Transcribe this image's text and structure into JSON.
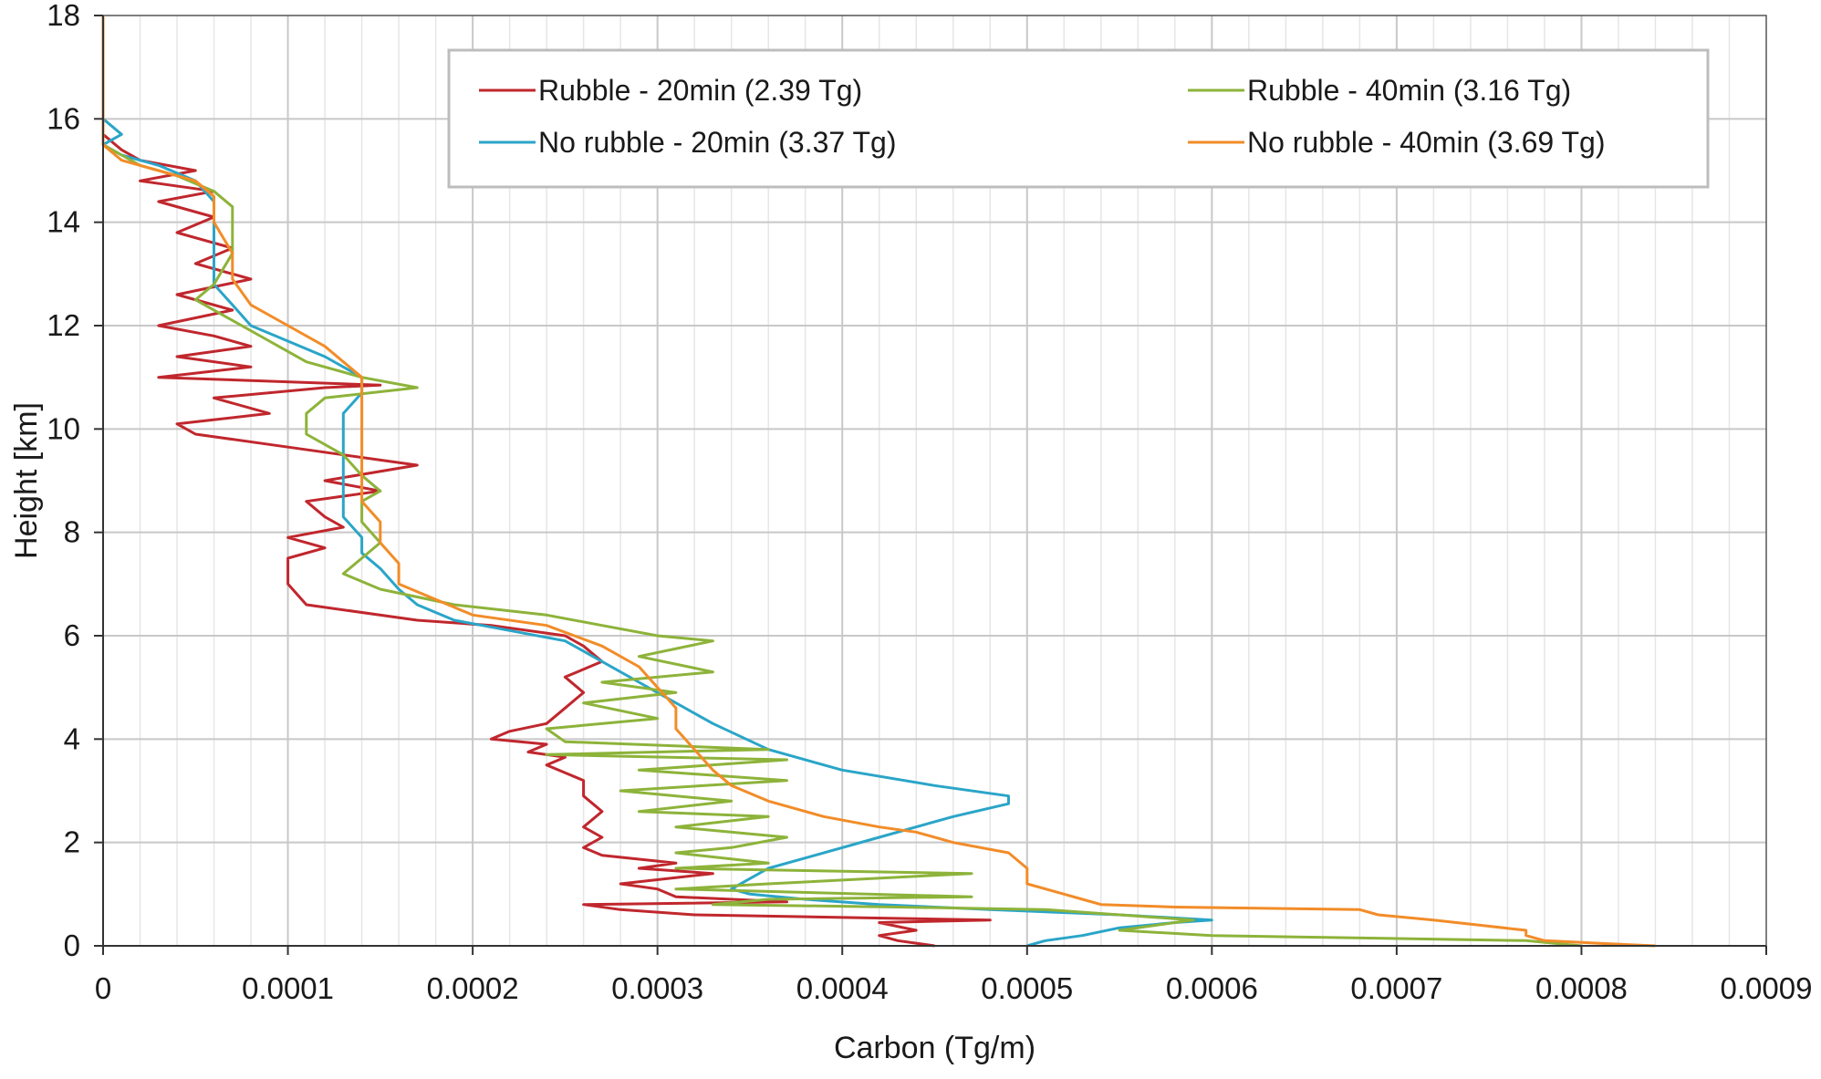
{
  "chart_data": {
    "type": "line",
    "title": "",
    "xlabel": "Carbon (Tg/m)",
    "ylabel": "Height [km]",
    "xlim": [
      0,
      0.0009
    ],
    "ylim": [
      0,
      18
    ],
    "x_ticks": [
      "0",
      "0.0001",
      "0.0002",
      "0.0003",
      "0.0004",
      "0.0005",
      "0.0006",
      "0.0007",
      "0.0008",
      "0.0009"
    ],
    "y_ticks": [
      "0",
      "2",
      "4",
      "6",
      "8",
      "10",
      "12",
      "14",
      "16",
      "18"
    ],
    "grid": true,
    "legend_position": "top-right",
    "series": [
      {
        "name": "Rubble - 20min (2.39 Tg)",
        "color": "#c0272d",
        "points": [
          [
            0.00045,
            0.0
          ],
          [
            0.00043,
            0.1
          ],
          [
            0.00042,
            0.2
          ],
          [
            0.00044,
            0.3
          ],
          [
            0.00042,
            0.45
          ],
          [
            0.00048,
            0.5
          ],
          [
            0.00032,
            0.6
          ],
          [
            0.00028,
            0.7
          ],
          [
            0.00026,
            0.8
          ],
          [
            0.00037,
            0.85
          ],
          [
            0.00031,
            0.95
          ],
          [
            0.0003,
            1.1
          ],
          [
            0.00028,
            1.2
          ],
          [
            0.00033,
            1.4
          ],
          [
            0.00029,
            1.5
          ],
          [
            0.00031,
            1.6
          ],
          [
            0.00027,
            1.75
          ],
          [
            0.00026,
            1.9
          ],
          [
            0.00027,
            2.1
          ],
          [
            0.00026,
            2.3
          ],
          [
            0.00027,
            2.6
          ],
          [
            0.00026,
            2.9
          ],
          [
            0.00026,
            3.2
          ],
          [
            0.00025,
            3.35
          ],
          [
            0.00024,
            3.5
          ],
          [
            0.00025,
            3.65
          ],
          [
            0.00023,
            3.75
          ],
          [
            0.00024,
            3.9
          ],
          [
            0.00021,
            4.0
          ],
          [
            0.00022,
            4.15
          ],
          [
            0.00024,
            4.3
          ],
          [
            0.00025,
            4.6
          ],
          [
            0.00026,
            4.9
          ],
          [
            0.00025,
            5.2
          ],
          [
            0.00027,
            5.5
          ],
          [
            0.00026,
            5.8
          ],
          [
            0.00025,
            6.0
          ],
          [
            0.00021,
            6.2
          ],
          [
            0.00017,
            6.3
          ],
          [
            0.00011,
            6.6
          ],
          [
            0.0001,
            7.0
          ],
          [
            0.0001,
            7.5
          ],
          [
            0.00012,
            7.7
          ],
          [
            0.0001,
            7.9
          ],
          [
            0.00013,
            8.1
          ],
          [
            0.00012,
            8.3
          ],
          [
            0.00011,
            8.6
          ],
          [
            0.00015,
            8.8
          ],
          [
            0.00012,
            9.0
          ],
          [
            0.00017,
            9.3
          ],
          [
            0.00013,
            9.5
          ],
          [
            9e-05,
            9.7
          ],
          [
            5e-05,
            9.9
          ],
          [
            4e-05,
            10.1
          ],
          [
            9e-05,
            10.3
          ],
          [
            6e-05,
            10.6
          ],
          [
            0.00012,
            10.8
          ],
          [
            0.00015,
            10.85
          ],
          [
            3e-05,
            11.0
          ],
          [
            8e-05,
            11.2
          ],
          [
            4e-05,
            11.4
          ],
          [
            8e-05,
            11.6
          ],
          [
            6e-05,
            11.8
          ],
          [
            3e-05,
            12.0
          ],
          [
            7e-05,
            12.3
          ],
          [
            4e-05,
            12.6
          ],
          [
            8e-05,
            12.9
          ],
          [
            5e-05,
            13.2
          ],
          [
            7e-05,
            13.5
          ],
          [
            4e-05,
            13.8
          ],
          [
            6e-05,
            14.1
          ],
          [
            3e-05,
            14.4
          ],
          [
            6e-05,
            14.6
          ],
          [
            2e-05,
            14.8
          ],
          [
            5e-05,
            15.0
          ],
          [
            2e-05,
            15.2
          ],
          [
            1e-05,
            15.4
          ],
          [
            0.0,
            15.7
          ],
          [
            0.0,
            16.0
          ],
          [
            0.0,
            16.5
          ],
          [
            0.0,
            17.0
          ],
          [
            0.0,
            17.5
          ],
          [
            0.0,
            18.0
          ]
        ]
      },
      {
        "name": "No rubble - 20min (3.37 Tg)",
        "color": "#2aa5c8",
        "points": [
          [
            0.0005,
            0.0
          ],
          [
            0.00051,
            0.1
          ],
          [
            0.00053,
            0.2
          ],
          [
            0.00055,
            0.35
          ],
          [
            0.00058,
            0.45
          ],
          [
            0.0006,
            0.5
          ],
          [
            0.00055,
            0.6
          ],
          [
            0.00048,
            0.7
          ],
          [
            0.00042,
            0.8
          ],
          [
            0.00038,
            0.9
          ],
          [
            0.00035,
            1.0
          ],
          [
            0.00034,
            1.1
          ],
          [
            0.00035,
            1.3
          ],
          [
            0.00036,
            1.5
          ],
          [
            0.00038,
            1.7
          ],
          [
            0.00042,
            2.1
          ],
          [
            0.00046,
            2.5
          ],
          [
            0.00049,
            2.75
          ],
          [
            0.00049,
            2.9
          ],
          [
            0.00045,
            3.1
          ],
          [
            0.0004,
            3.4
          ],
          [
            0.00036,
            3.8
          ],
          [
            0.00033,
            4.3
          ],
          [
            0.00031,
            4.7
          ],
          [
            0.00029,
            5.1
          ],
          [
            0.00027,
            5.5
          ],
          [
            0.00025,
            5.9
          ],
          [
            0.00022,
            6.1
          ],
          [
            0.00019,
            6.3
          ],
          [
            0.00017,
            6.6
          ],
          [
            0.00016,
            6.9
          ],
          [
            0.00015,
            7.3
          ],
          [
            0.00014,
            7.6
          ],
          [
            0.00014,
            7.9
          ],
          [
            0.00013,
            8.3
          ],
          [
            0.00013,
            8.7
          ],
          [
            0.00013,
            9.1
          ],
          [
            0.00013,
            9.5
          ],
          [
            0.00013,
            9.9
          ],
          [
            0.00013,
            10.3
          ],
          [
            0.00014,
            10.7
          ],
          [
            0.00014,
            11.0
          ],
          [
            0.00012,
            11.4
          ],
          [
            0.0001,
            11.7
          ],
          [
            8e-05,
            12.0
          ],
          [
            7e-05,
            12.4
          ],
          [
            6e-05,
            12.8
          ],
          [
            6e-05,
            13.3
          ],
          [
            6e-05,
            13.9
          ],
          [
            6e-05,
            14.4
          ],
          [
            5e-05,
            14.8
          ],
          [
            3e-05,
            15.1
          ],
          [
            1e-05,
            15.3
          ],
          [
            0.0,
            15.5
          ],
          [
            1e-05,
            15.7
          ],
          [
            0.0,
            16.0
          ],
          [
            0.0,
            16.5
          ],
          [
            0.0,
            17.0
          ],
          [
            0.0,
            17.5
          ],
          [
            0.0,
            18.0
          ]
        ]
      },
      {
        "name": "Rubble - 40min (3.16 Tg)",
        "color": "#8db33a",
        "points": [
          [
            0.0008,
            0.0
          ],
          [
            0.00077,
            0.1
          ],
          [
            0.0006,
            0.2
          ],
          [
            0.00055,
            0.3
          ],
          [
            0.00058,
            0.45
          ],
          [
            0.00059,
            0.5
          ],
          [
            0.00055,
            0.6
          ],
          [
            0.00051,
            0.7
          ],
          [
            0.00043,
            0.75
          ],
          [
            0.00033,
            0.8
          ],
          [
            0.00036,
            0.9
          ],
          [
            0.00047,
            0.95
          ],
          [
            0.00031,
            1.1
          ],
          [
            0.00036,
            1.2
          ],
          [
            0.00047,
            1.4
          ],
          [
            0.00031,
            1.5
          ],
          [
            0.00036,
            1.6
          ],
          [
            0.00031,
            1.8
          ],
          [
            0.00034,
            1.9
          ],
          [
            0.00037,
            2.1
          ],
          [
            0.00031,
            2.3
          ],
          [
            0.00036,
            2.5
          ],
          [
            0.00029,
            2.6
          ],
          [
            0.00034,
            2.8
          ],
          [
            0.00028,
            3.0
          ],
          [
            0.00037,
            3.2
          ],
          [
            0.00029,
            3.4
          ],
          [
            0.00037,
            3.6
          ],
          [
            0.00024,
            3.7
          ],
          [
            0.00036,
            3.8
          ],
          [
            0.00025,
            3.95
          ],
          [
            0.00024,
            4.2
          ],
          [
            0.0003,
            4.4
          ],
          [
            0.00026,
            4.7
          ],
          [
            0.00031,
            4.9
          ],
          [
            0.00027,
            5.1
          ],
          [
            0.00033,
            5.3
          ],
          [
            0.00029,
            5.6
          ],
          [
            0.00033,
            5.9
          ],
          [
            0.0003,
            6.0
          ],
          [
            0.00027,
            6.2
          ],
          [
            0.00024,
            6.4
          ],
          [
            0.00019,
            6.6
          ],
          [
            0.00015,
            6.9
          ],
          [
            0.00013,
            7.2
          ],
          [
            0.00014,
            7.5
          ],
          [
            0.00015,
            7.8
          ],
          [
            0.00014,
            8.2
          ],
          [
            0.00014,
            8.6
          ],
          [
            0.00015,
            8.8
          ],
          [
            0.00014,
            9.1
          ],
          [
            0.00013,
            9.5
          ],
          [
            0.00011,
            9.9
          ],
          [
            0.00011,
            10.3
          ],
          [
            0.00012,
            10.6
          ],
          [
            0.00017,
            10.8
          ],
          [
            0.00014,
            11.0
          ],
          [
            0.00011,
            11.3
          ],
          [
            9e-05,
            11.7
          ],
          [
            7e-05,
            12.1
          ],
          [
            5e-05,
            12.5
          ],
          [
            6e-05,
            12.8
          ],
          [
            7e-05,
            13.4
          ],
          [
            7e-05,
            14.0
          ],
          [
            7e-05,
            14.3
          ],
          [
            6e-05,
            14.6
          ],
          [
            4e-05,
            14.9
          ],
          [
            2e-05,
            15.1
          ],
          [
            1e-05,
            15.3
          ],
          [
            0.0,
            15.5
          ],
          [
            0.0,
            16.0
          ],
          [
            0.0,
            16.5
          ],
          [
            0.0,
            17.0
          ],
          [
            0.0,
            17.5
          ],
          [
            0.0,
            18.0
          ]
        ]
      },
      {
        "name": "No rubble - 40min (3.69 Tg)",
        "color": "#f28c28",
        "points": [
          [
            0.00084,
            0.0
          ],
          [
            0.00081,
            0.05
          ],
          [
            0.00078,
            0.1
          ],
          [
            0.00077,
            0.2
          ],
          [
            0.00077,
            0.3
          ],
          [
            0.00072,
            0.5
          ],
          [
            0.00069,
            0.6
          ],
          [
            0.00068,
            0.7
          ],
          [
            0.00058,
            0.75
          ],
          [
            0.00054,
            0.8
          ],
          [
            0.00053,
            0.9
          ],
          [
            0.00052,
            1.0
          ],
          [
            0.0005,
            1.2
          ],
          [
            0.0005,
            1.5
          ],
          [
            0.00049,
            1.8
          ],
          [
            0.00046,
            2.0
          ],
          [
            0.00044,
            2.2
          ],
          [
            0.00042,
            2.3
          ],
          [
            0.00039,
            2.5
          ],
          [
            0.00036,
            2.8
          ],
          [
            0.00034,
            3.1
          ],
          [
            0.00033,
            3.4
          ],
          [
            0.00032,
            3.8
          ],
          [
            0.00031,
            4.2
          ],
          [
            0.00031,
            4.6
          ],
          [
            0.0003,
            5.0
          ],
          [
            0.00029,
            5.4
          ],
          [
            0.00027,
            5.8
          ],
          [
            0.00024,
            6.2
          ],
          [
            0.0002,
            6.4
          ],
          [
            0.00018,
            6.7
          ],
          [
            0.00016,
            7.0
          ],
          [
            0.00016,
            7.4
          ],
          [
            0.00015,
            7.8
          ],
          [
            0.00015,
            8.2
          ],
          [
            0.00014,
            8.6
          ],
          [
            0.00014,
            9.0
          ],
          [
            0.00014,
            9.5
          ],
          [
            0.00014,
            10.0
          ],
          [
            0.00014,
            10.5
          ],
          [
            0.00014,
            11.0
          ],
          [
            0.00013,
            11.3
          ],
          [
            0.00012,
            11.6
          ],
          [
            0.0001,
            12.0
          ],
          [
            8e-05,
            12.4
          ],
          [
            7e-05,
            12.9
          ],
          [
            7e-05,
            13.4
          ],
          [
            6e-05,
            14.0
          ],
          [
            6e-05,
            14.5
          ],
          [
            5e-05,
            14.8
          ],
          [
            3e-05,
            15.0
          ],
          [
            1e-05,
            15.2
          ],
          [
            0.0,
            15.5
          ],
          [
            0.0,
            16.0
          ],
          [
            0.0,
            16.5
          ],
          [
            0.0,
            17.0
          ],
          [
            0.0,
            17.5
          ],
          [
            0.0,
            18.0
          ]
        ]
      }
    ]
  }
}
